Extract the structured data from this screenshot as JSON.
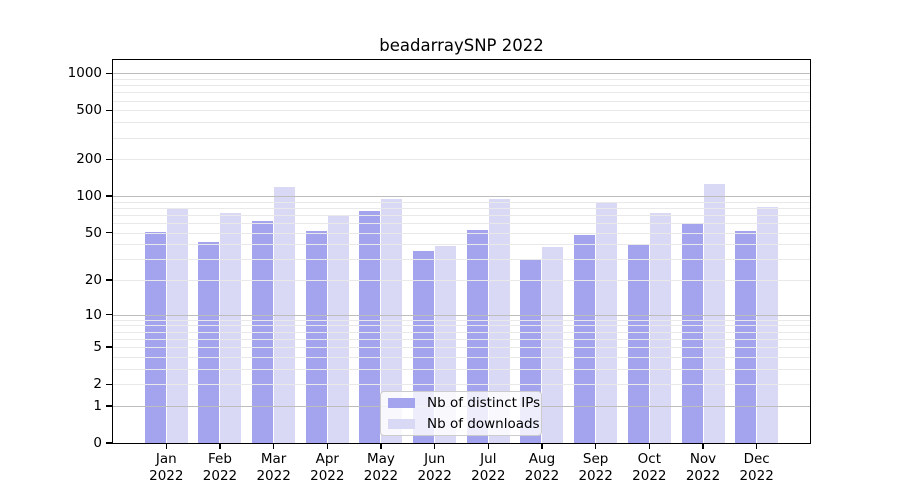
{
  "title": "beadarraySNP 2022",
  "colors": {
    "ips_bar": "#a3a3ee",
    "downloads_bar": "#d9d9f6",
    "grid_major": "#bdbdbd",
    "grid_minor": "#e9e9e9",
    "axis": "#000000",
    "legend_border": "#cccccc"
  },
  "y_axis": {
    "tick_labels": [
      1000,
      500,
      200,
      100,
      50,
      20,
      10,
      5,
      2,
      1,
      0
    ]
  },
  "x_axis": {
    "months": [
      "Jan",
      "Feb",
      "Mar",
      "Apr",
      "May",
      "Jun",
      "Jul",
      "Aug",
      "Sep",
      "Oct",
      "Nov",
      "Dec"
    ],
    "year": "2022"
  },
  "legend": {
    "items": [
      {
        "label": "Nb of distinct IPs",
        "series": "ips"
      },
      {
        "label": "Nb of downloads",
        "series": "downloads"
      }
    ]
  },
  "chart_data": {
    "type": "bar",
    "title": "beadarraySNP 2022",
    "scale": "log1p",
    "categories": [
      "Jan 2022",
      "Feb 2022",
      "Mar 2022",
      "Apr 2022",
      "May 2022",
      "Jun 2022",
      "Jul 2022",
      "Aug 2022",
      "Sep 2022",
      "Oct 2022",
      "Nov 2022",
      "Dec 2022"
    ],
    "series": [
      {
        "name": "Nb of distinct IPs",
        "color": "#a3a3ee",
        "values": [
          51,
          42,
          63,
          52,
          75,
          35,
          53,
          30,
          48,
          40,
          59,
          52
        ]
      },
      {
        "name": "Nb of downloads",
        "color": "#d9d9f6",
        "values": [
          79,
          72,
          119,
          70,
          95,
          39,
          94,
          38,
          90,
          72,
          125,
          81
        ]
      }
    ],
    "xlabel": "",
    "ylabel": "",
    "ylim": [
      0,
      1284
    ],
    "y_ticks": [
      0,
      1,
      2,
      5,
      10,
      20,
      50,
      100,
      200,
      500,
      1000
    ],
    "grid": "horizontal major (powers of 10) + minor (2-9 multiples), drawn over bars",
    "legend_position": "lower center"
  }
}
